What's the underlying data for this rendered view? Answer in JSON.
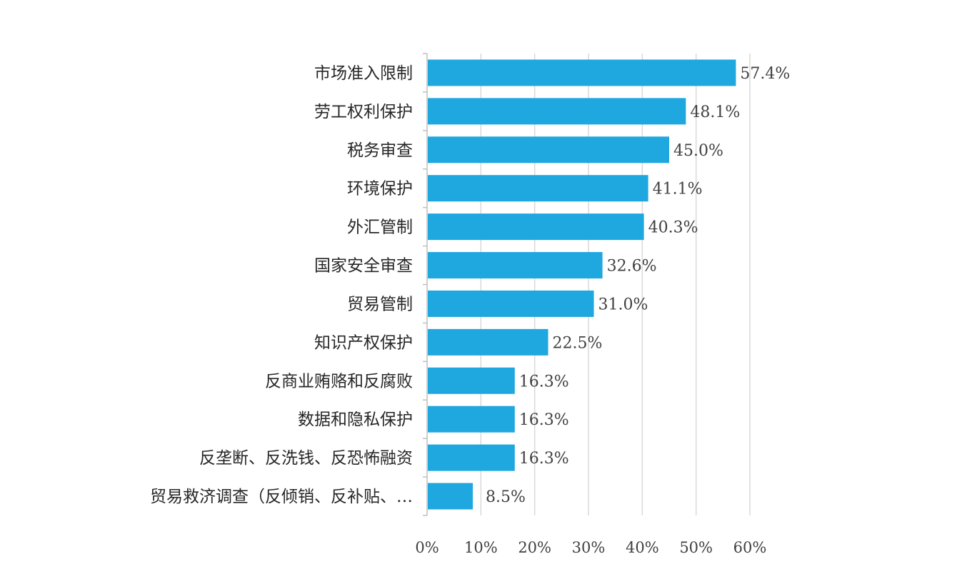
{
  "chart_data": {
    "type": "bar",
    "orientation": "horizontal",
    "title": "",
    "xlabel": "",
    "ylabel": "",
    "xlim": [
      0,
      60
    ],
    "x_ticks": [
      "0%",
      "10%",
      "20%",
      "30%",
      "40%",
      "50%",
      "60%"
    ],
    "grid": true,
    "legend": "none",
    "bar_color": "#1fa7e0",
    "categories": [
      "市场准入限制",
      "劳工权利保护",
      "税务审查",
      "环境保护",
      "外汇管制",
      "国家安全审查",
      "贸易管制",
      "知识产权保护",
      "反商业贿赂和反腐败",
      "数据和隐私保护",
      "反垄断、反洗钱、反恐怖融资",
      "贸易救济调查（反倾销、反补贴、…"
    ],
    "values": [
      57.4,
      48.1,
      45.0,
      41.1,
      40.3,
      32.6,
      31.0,
      22.5,
      16.3,
      16.3,
      16.3,
      8.5
    ],
    "data_labels": [
      "57.4%",
      "48.1%",
      "45.0%",
      "41.1%",
      "40.3%",
      "32.6%",
      "31.0%",
      "22.5%",
      "16.3%",
      "16.3%",
      "16.3%",
      "8.5%"
    ]
  }
}
